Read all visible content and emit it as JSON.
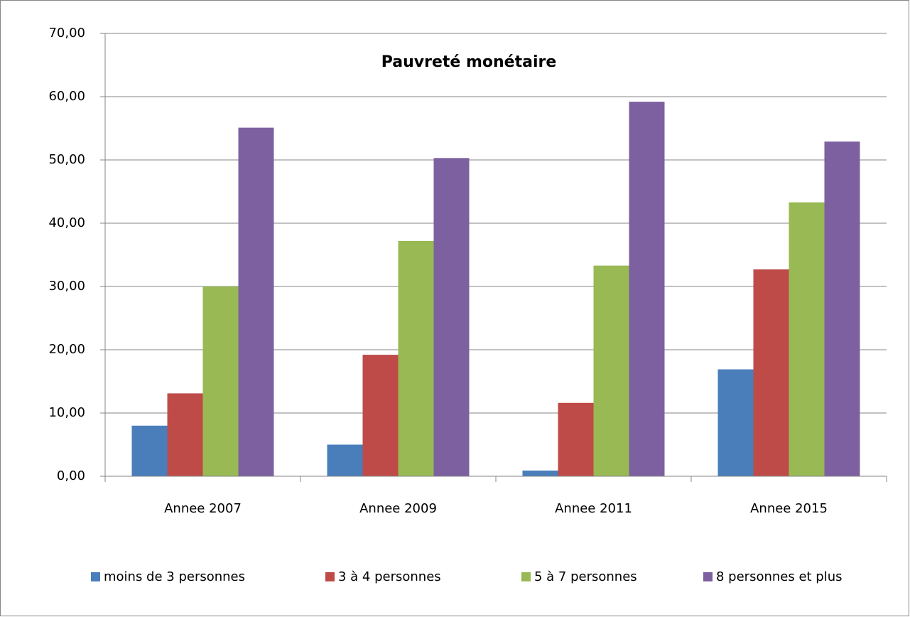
{
  "chart_data": {
    "type": "bar",
    "title": "Pauvreté monétaire",
    "categories": [
      "Annee 2007",
      "Annee 2009",
      "Annee 2011",
      "Annee 2015"
    ],
    "series": [
      {
        "name": "moins de 3 personnes",
        "color": "#4a7ebb",
        "values": [
          8.0,
          5.0,
          0.9,
          16.9
        ]
      },
      {
        "name": "3 à 4 personnes",
        "color": "#be4b48",
        "values": [
          13.1,
          19.2,
          11.6,
          32.7
        ]
      },
      {
        "name": "5 à 7 personnes",
        "color": "#98b954",
        "values": [
          30.0,
          37.2,
          33.3,
          43.3
        ]
      },
      {
        "name": "8 personnes et plus",
        "color": "#7d60a0",
        "values": [
          55.1,
          50.3,
          59.2,
          52.9
        ]
      }
    ],
    "ylim": [
      0,
      70
    ],
    "yticks": [
      {
        "value": 0,
        "label": "0,00"
      },
      {
        "value": 10,
        "label": "10,00"
      },
      {
        "value": 20,
        "label": "20,00"
      },
      {
        "value": 30,
        "label": "30,00"
      },
      {
        "value": 40,
        "label": "40,00"
      },
      {
        "value": 50,
        "label": "50,00"
      },
      {
        "value": 60,
        "label": "60,00"
      },
      {
        "value": 70,
        "label": "70,00"
      }
    ],
    "grid": true,
    "legend": "bottom"
  }
}
